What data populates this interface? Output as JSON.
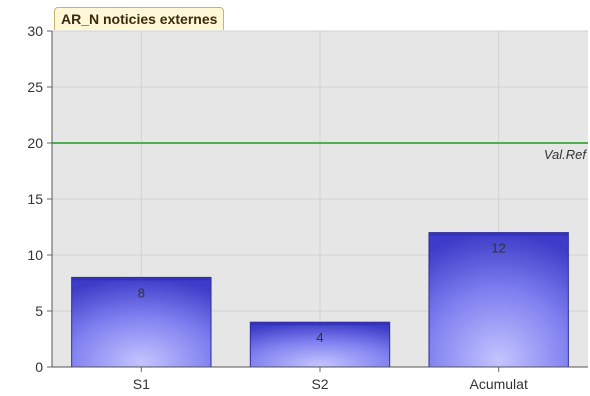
{
  "chart_data": {
    "type": "bar",
    "title": "AR_N noticies externes",
    "categories": [
      "S1",
      "S2",
      "Acumulat"
    ],
    "values": [
      8,
      4,
      12
    ],
    "data_labels": [
      "8",
      "4",
      "12"
    ],
    "ylim": [
      0,
      30
    ],
    "y_ticks": [
      0,
      5,
      10,
      15,
      20,
      25,
      30
    ],
    "grid": true,
    "reference_line": {
      "label": "Val.Ref",
      "value": 20,
      "color": "#4caf50"
    },
    "colors": {
      "plot_background": "#e6e6e6",
      "bar_fill_light": "#b9b9ff",
      "bar_fill_dark": "#3f3fd0",
      "bar_stroke": "#2c2c9a",
      "grid": "#d2d2d2",
      "title_tab": "#fff7d6"
    }
  }
}
